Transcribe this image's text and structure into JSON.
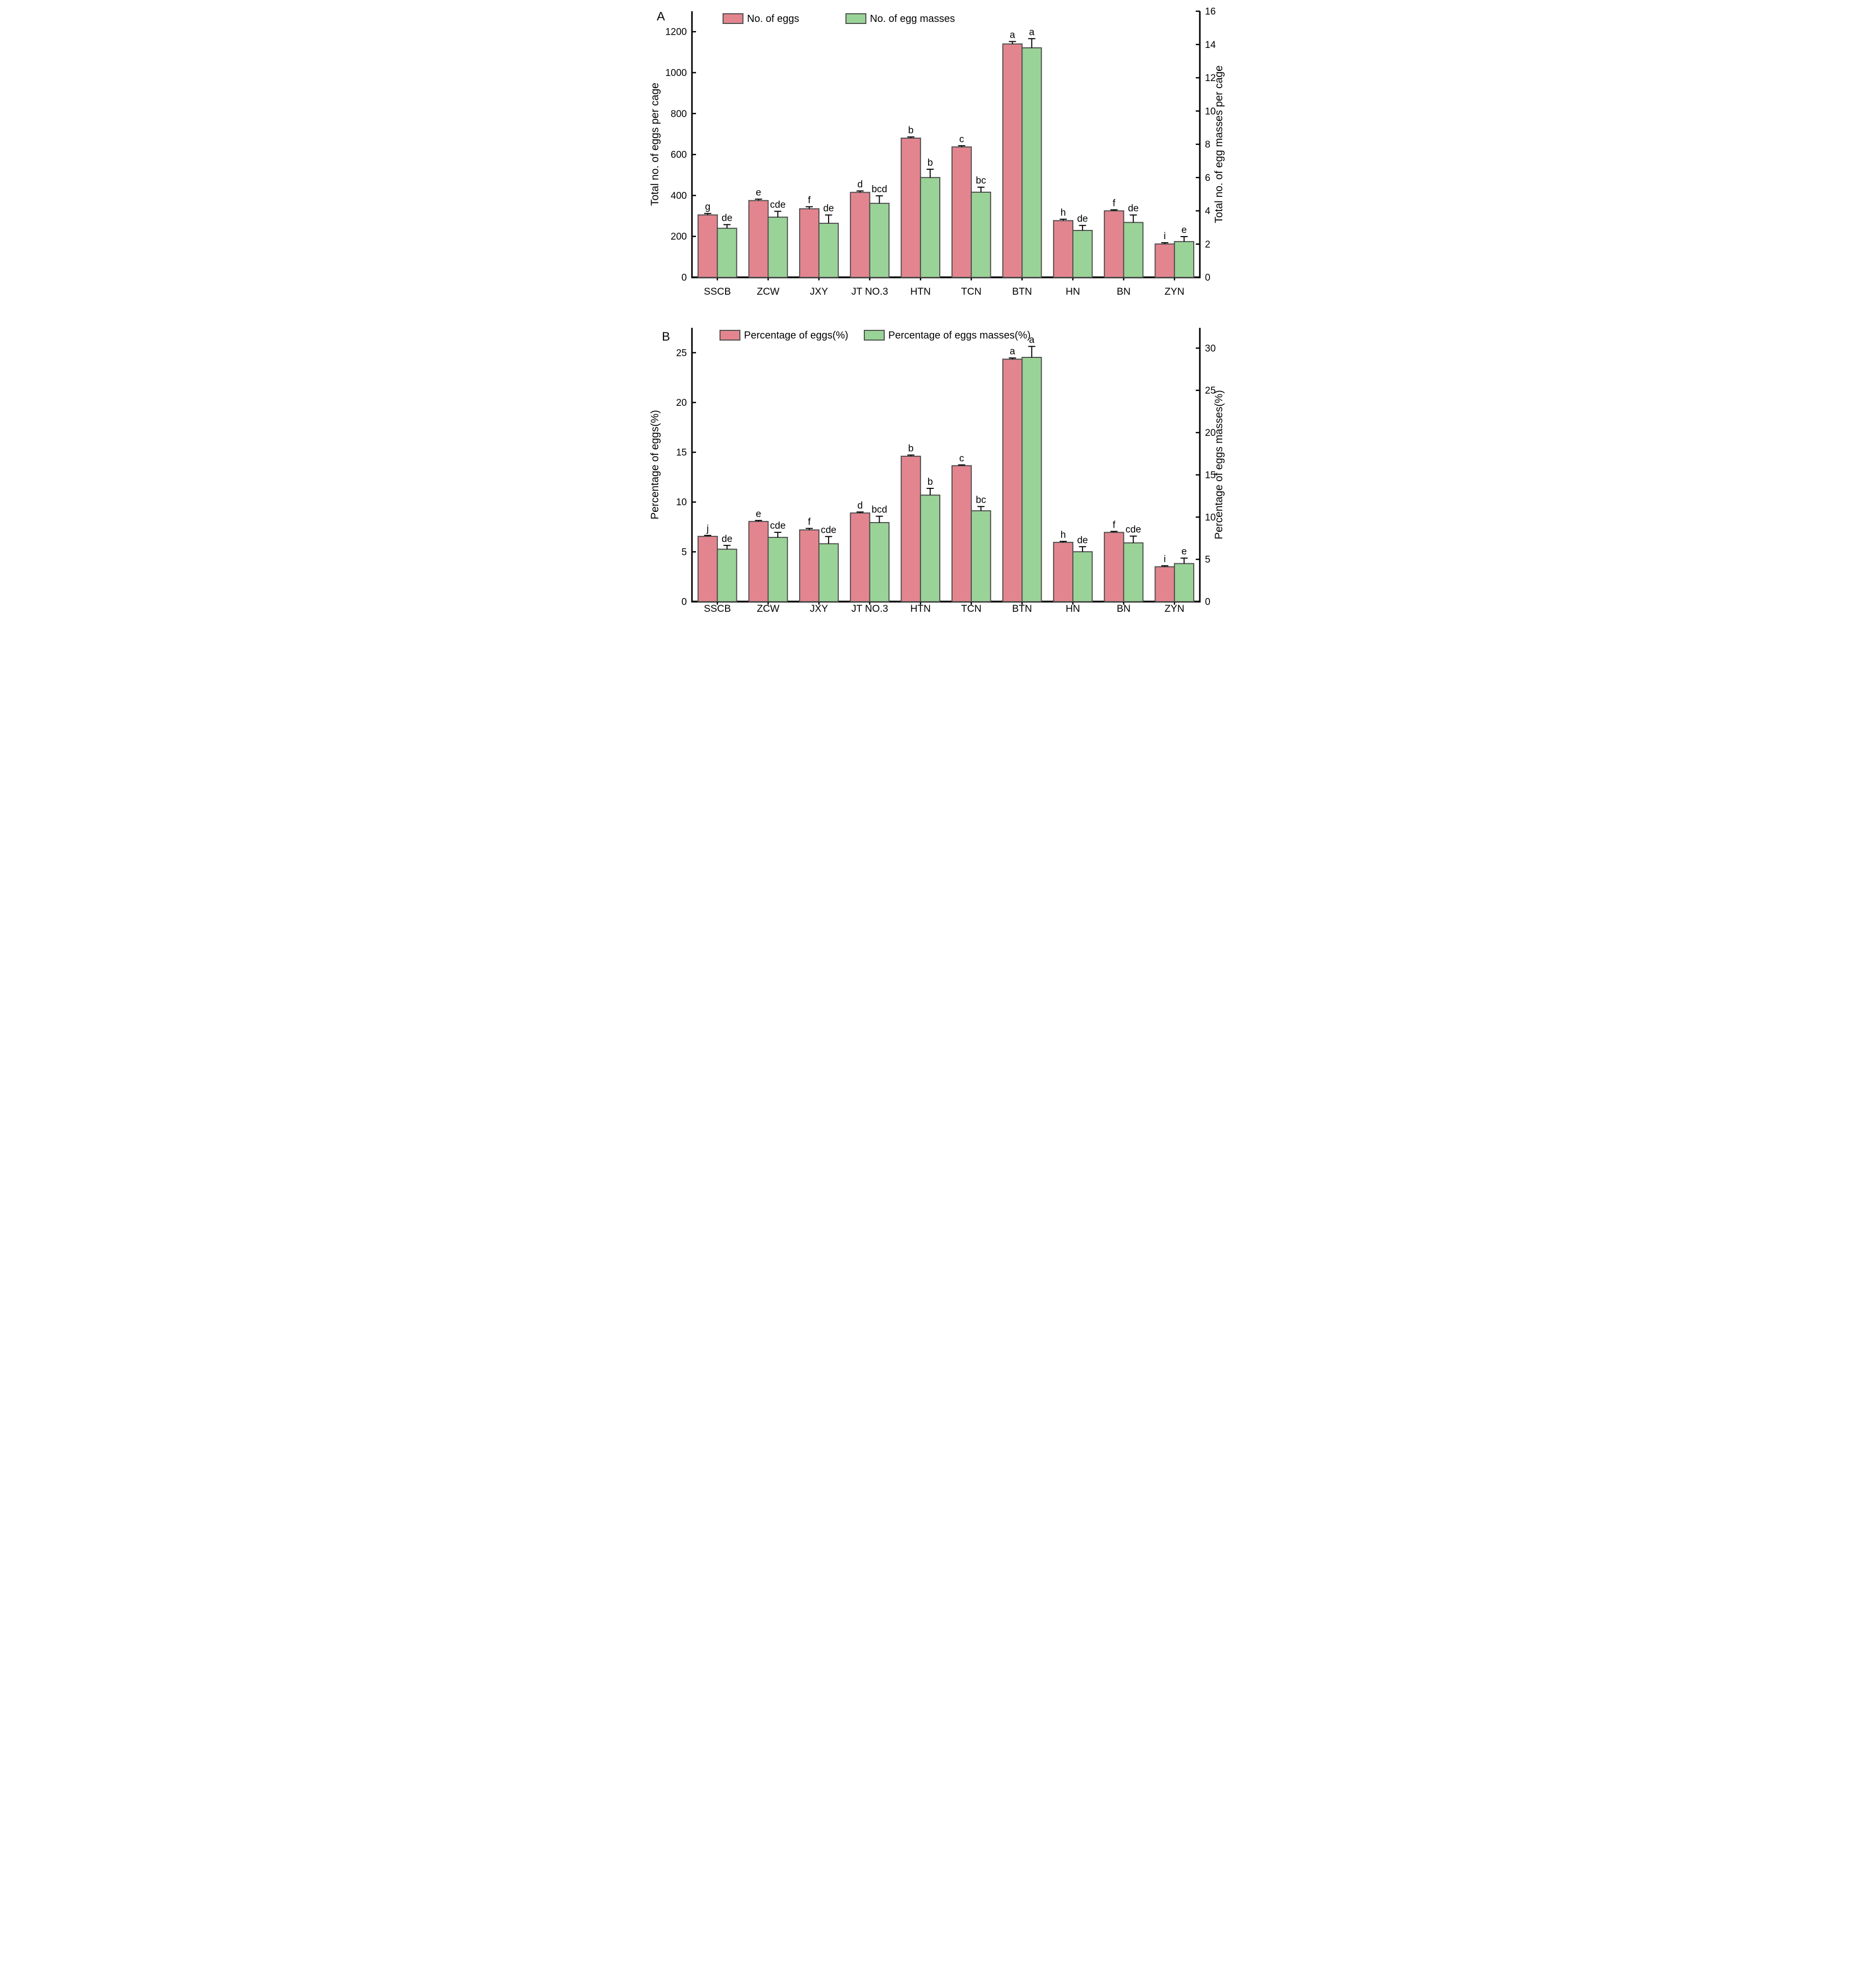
{
  "figure_title": "",
  "chart_data": [
    {
      "type": "bar",
      "panel_label": "A",
      "categories": [
        "SSCB",
        "ZCW",
        "JXY",
        "JT NO.3",
        "HTN",
        "TCN",
        "BTN",
        "HN",
        "BN",
        "ZYN"
      ],
      "left_axis": {
        "label": "Total no. of eggs per cage",
        "ticks": [
          0,
          200,
          400,
          600,
          800,
          1000,
          1200
        ],
        "max": 1300
      },
      "right_axis": {
        "label": "Total no. of egg masses per cage",
        "ticks": [
          0,
          2,
          4,
          6,
          8,
          10,
          12,
          14,
          16
        ],
        "max": 16
      },
      "legend": [
        {
          "label": "No. of eggs",
          "color": "#E3858F"
        },
        {
          "label": "No. of egg masses",
          "color": "#9AD397"
        }
      ],
      "grid": false,
      "series": [
        {
          "name": "No. of eggs",
          "axis": "left",
          "color": "#E3858F",
          "values": [
            305,
            375,
            335,
            415,
            680,
            637,
            1140,
            277,
            325,
            163
          ],
          "errors": [
            7,
            7,
            10,
            7,
            6,
            6,
            12,
            7,
            5,
            6
          ],
          "letters": [
            "g",
            "e",
            "f",
            "d",
            "b",
            "c",
            "a",
            "h",
            "f",
            "i"
          ]
        },
        {
          "name": "No. of egg masses",
          "axis": "right",
          "color": "#9AD397",
          "values": [
            2.95,
            3.62,
            3.25,
            4.45,
            6.0,
            5.12,
            13.8,
            2.82,
            3.3,
            2.15
          ],
          "errors": [
            0.22,
            0.35,
            0.5,
            0.45,
            0.5,
            0.3,
            0.55,
            0.3,
            0.45,
            0.3
          ],
          "letters": [
            "de",
            "cde",
            "de",
            "bcd",
            "b",
            "bc",
            "a",
            "de",
            "de",
            "e"
          ]
        }
      ]
    },
    {
      "type": "bar",
      "panel_label": "B",
      "categories": [
        "SSCB",
        "ZCW",
        "JXY",
        "JT NO.3",
        "HTN",
        "TCN",
        "BTN",
        "HN",
        "BN",
        "ZYN"
      ],
      "left_axis": {
        "label": "Percentage of eggs(%)",
        "ticks": [
          0,
          5,
          10,
          15,
          20,
          25
        ],
        "max": 27.5
      },
      "right_axis": {
        "label": "Percentage of eggs masses(%)",
        "ticks": [
          0,
          5,
          10,
          15,
          20,
          25,
          30
        ],
        "max": 32.4
      },
      "legend": [
        {
          "label": "Percentage of eggs(%)",
          "color": "#E3858F"
        },
        {
          "label": "Percentage of eggs masses(%)",
          "color": "#9AD397"
        }
      ],
      "grid": false,
      "series": [
        {
          "name": "Percentage of eggs(%)",
          "axis": "left",
          "color": "#E3858F",
          "values": [
            6.55,
            8.05,
            7.2,
            8.9,
            14.6,
            13.65,
            24.35,
            5.95,
            6.95,
            3.5
          ],
          "errors": [
            0.1,
            0.1,
            0.15,
            0.1,
            0.12,
            0.08,
            0.12,
            0.1,
            0.1,
            0.1
          ],
          "letters": [
            "j",
            "e",
            "f",
            "d",
            "b",
            "c",
            "a",
            "h",
            "f",
            "i"
          ]
        },
        {
          "name": "Percentage of eggs masses(%)",
          "axis": "right",
          "color": "#9AD397",
          "values": [
            6.2,
            7.6,
            6.85,
            9.35,
            12.6,
            10.75,
            28.9,
            5.9,
            6.95,
            4.5
          ],
          "errors": [
            0.45,
            0.6,
            0.85,
            0.75,
            0.8,
            0.5,
            1.3,
            0.6,
            0.8,
            0.65
          ],
          "letters": [
            "de",
            "cde",
            "cde",
            "bcd",
            "b",
            "bc",
            "a",
            "de",
            "cde",
            "e"
          ]
        }
      ]
    }
  ],
  "style": {
    "bar_outline_color": "#4d4d4d",
    "axis_color": "#000000",
    "error_bar_color": "#000000",
    "background": "#ffffff"
  }
}
